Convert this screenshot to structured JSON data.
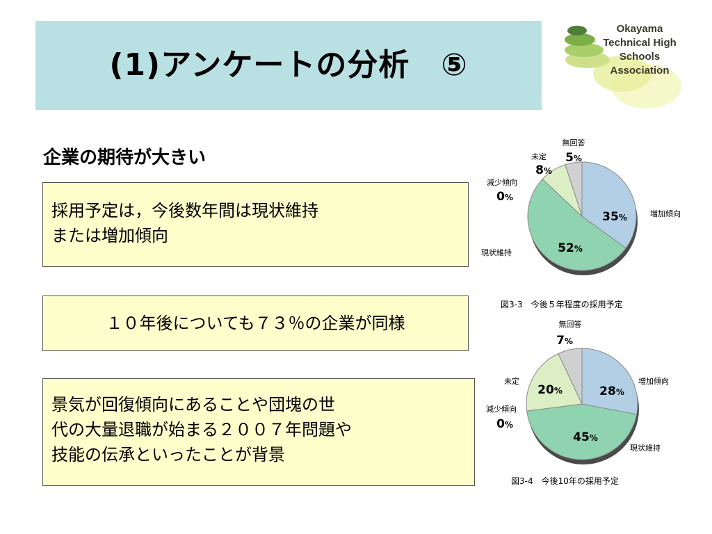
{
  "header": {
    "title": "(1)アンケートの分析　⑤"
  },
  "logo": {
    "lines": [
      "Okayama",
      "Technical High Schools",
      "Association"
    ]
  },
  "subtitle": "企業の期待が大きい",
  "boxes": {
    "box1_lines": [
      "採用予定は，今後数年間は現状維持",
      "または増加傾向"
    ],
    "box2": "１０年後についても７３％の企業が同様",
    "box3_lines": [
      "景気が回復傾向にあることや団塊の世",
      "代の大量退職が始まる２００７年問題や",
      "技能の伝承といったことが背景"
    ]
  },
  "chart_data": [
    {
      "type": "pie",
      "title": "図3-3　今後５年程度の採用予定",
      "slices": [
        {
          "label": "増加傾向",
          "value": 35,
          "color": "#b3cfe6"
        },
        {
          "label": "現状維持",
          "value": 52,
          "color": "#8fd3b0"
        },
        {
          "label": "減少傾向",
          "value": 0,
          "color": "#e8e8e8"
        },
        {
          "label": "未定",
          "value": 8,
          "color": "#dcefc4"
        },
        {
          "label": "無回答",
          "value": 5,
          "color": "#d0d0d0"
        }
      ],
      "value_suffix": "%"
    },
    {
      "type": "pie",
      "title": "図3-4　今後10年の採用予定",
      "slices": [
        {
          "label": "増加傾向",
          "value": 28,
          "color": "#b3cfe6"
        },
        {
          "label": "現状維持",
          "value": 45,
          "color": "#8fd3b0"
        },
        {
          "label": "減少傾向",
          "value": 0,
          "color": "#e8e8e8"
        },
        {
          "label": "未定",
          "value": 20,
          "color": "#dcefc4"
        },
        {
          "label": "無回答",
          "value": 7,
          "color": "#d0d0d0"
        }
      ],
      "value_suffix": "%"
    }
  ]
}
